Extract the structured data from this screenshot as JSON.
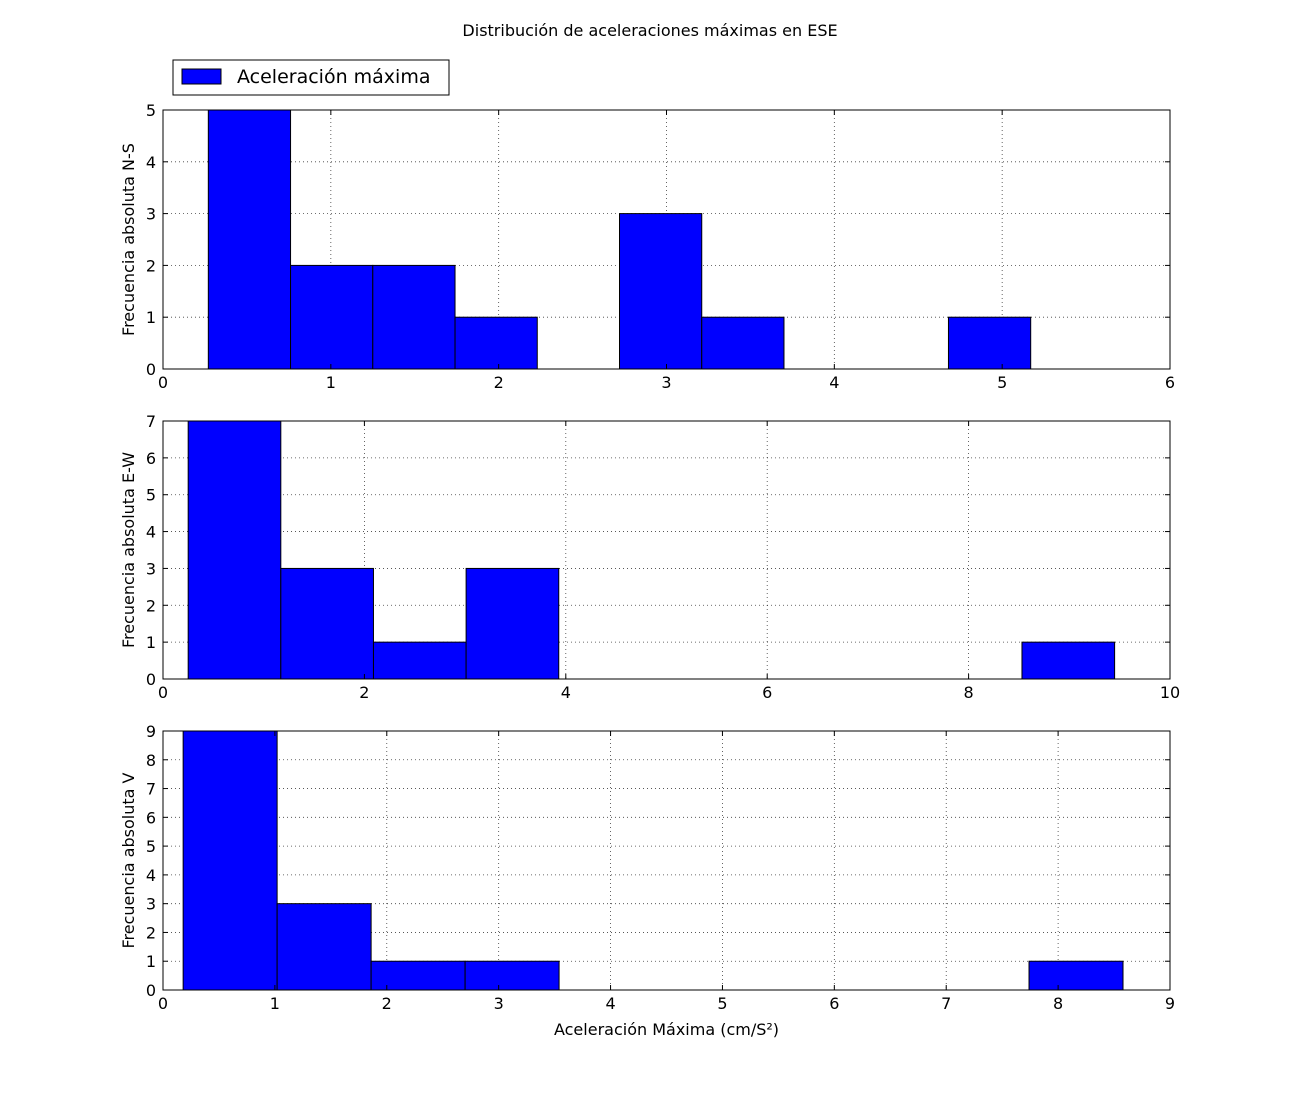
{
  "figure_title": "Distribución de aceleraciones máximas en ESE",
  "legend": {
    "label": "Aceleración máxima",
    "color": "#0000ff",
    "placement": "top-left"
  },
  "bar_color": "#0000ff",
  "chart_data": [
    {
      "type": "bar",
      "title": "",
      "xlabel": "",
      "ylabel": "Frecuencia absoluta N-S",
      "xlim": [
        0,
        6
      ],
      "ylim": [
        0,
        5
      ],
      "xticks": [
        0,
        1,
        2,
        3,
        4,
        5,
        6
      ],
      "yticks": [
        0,
        1,
        2,
        3,
        4,
        5
      ],
      "grid": true,
      "bin_edges": [
        0.27,
        0.76,
        1.25,
        1.74,
        2.23,
        2.72,
        3.21,
        3.7,
        4.19,
        4.68,
        5.17
      ],
      "values": [
        5,
        2,
        2,
        1,
        0,
        3,
        1,
        0,
        0,
        1
      ]
    },
    {
      "type": "bar",
      "title": "",
      "xlabel": "",
      "ylabel": "Frecuencia absoluta E-W",
      "xlim": [
        0,
        10
      ],
      "ylim": [
        0,
        7
      ],
      "xticks": [
        0,
        2,
        4,
        6,
        8,
        10
      ],
      "yticks": [
        0,
        1,
        2,
        3,
        4,
        5,
        6,
        7
      ],
      "grid": true,
      "bin_edges": [
        0.25,
        1.17,
        2.09,
        3.01,
        3.93,
        4.85,
        5.77,
        6.69,
        7.61,
        8.53,
        9.45
      ],
      "values": [
        7,
        3,
        1,
        3,
        0,
        0,
        0,
        0,
        0,
        1
      ]
    },
    {
      "type": "bar",
      "title": "",
      "xlabel": "Aceleración Máxima (cm/S²)",
      "ylabel": "Frecuencia absoluta V",
      "xlim": [
        0,
        9
      ],
      "ylim": [
        0,
        9
      ],
      "xticks": [
        0,
        1,
        2,
        3,
        4,
        5,
        6,
        7,
        8,
        9
      ],
      "yticks": [
        0,
        1,
        2,
        3,
        4,
        5,
        6,
        7,
        8,
        9
      ],
      "grid": true,
      "bin_edges": [
        0.18,
        1.02,
        1.86,
        2.7,
        3.54,
        4.38,
        5.22,
        6.06,
        6.9,
        7.74,
        8.58
      ],
      "values": [
        9,
        3,
        1,
        1,
        0,
        0,
        0,
        0,
        0,
        1
      ]
    }
  ]
}
